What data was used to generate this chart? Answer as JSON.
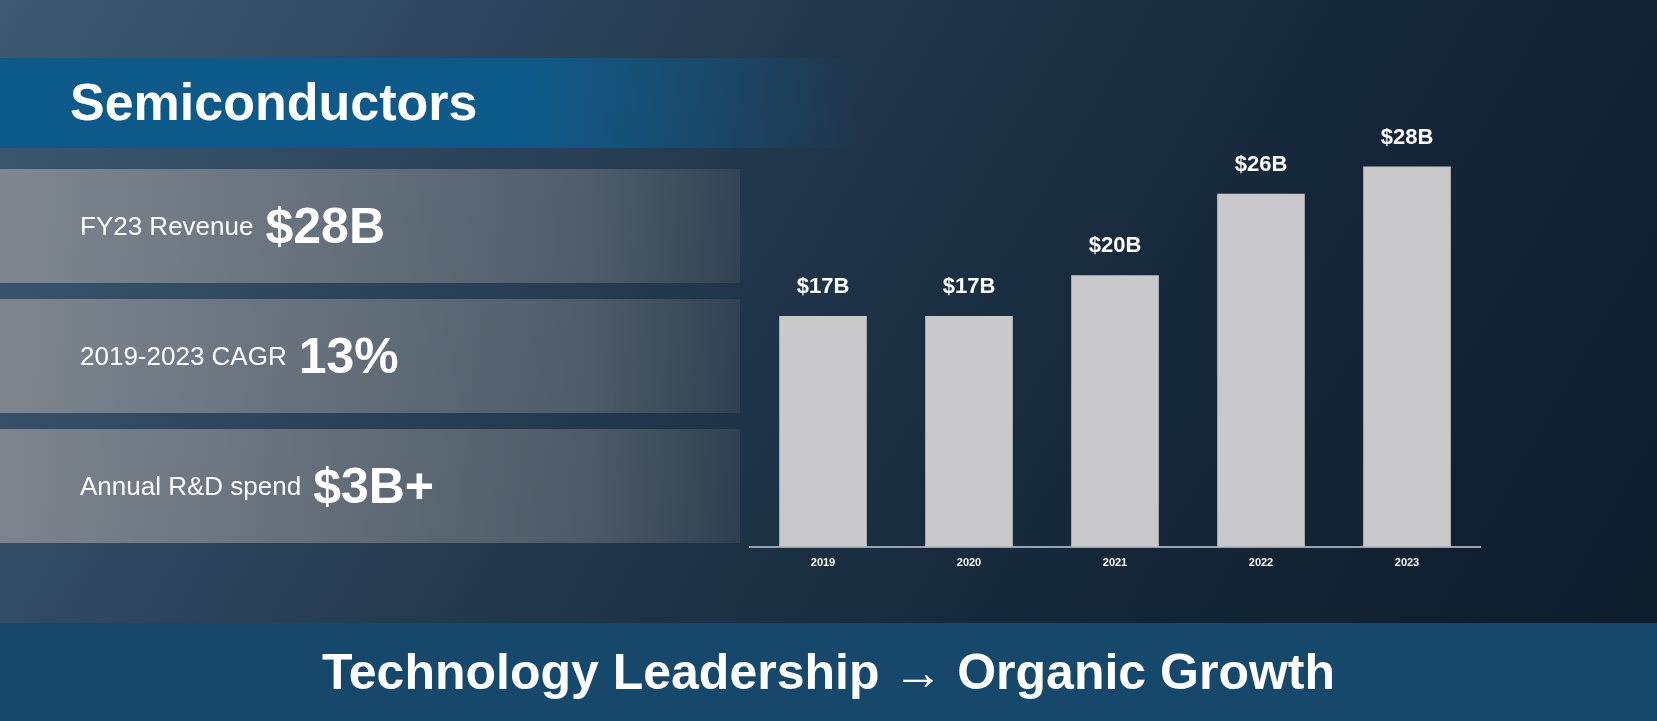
{
  "chart_data": {
    "type": "bar",
    "title": "Semiconductors",
    "categories": [
      "2019",
      "2020",
      "2021",
      "2022",
      "2023"
    ],
    "values": [
      17,
      17,
      20,
      26,
      28
    ],
    "value_labels": [
      "$17B",
      "$17B",
      "$20B",
      "$26B",
      "$28B"
    ],
    "color": "#c9c9cb",
    "grid": false,
    "legend": false,
    "annotations": [
      "FY23 Revenue $28B",
      "2019-2023 CAGR 13%",
      "Annual R&D spend $3B+",
      "Technology Leadership → Organic Growth"
    ]
  }
}
